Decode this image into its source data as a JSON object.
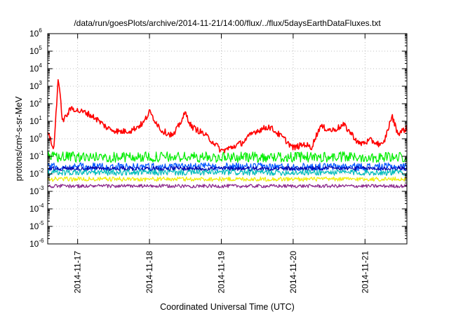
{
  "chart_data": {
    "type": "line",
    "title": "/data/run/goesPlots/archive/2014-11-21/14:00/flux/../flux/5daysEarthDataFluxes.txt",
    "xlabel": "Coordinated Universal Time (UTC)",
    "ylabel": "protons/cm²-s-sr-MeV",
    "y_scale": "log",
    "ylim": [
      1e-06,
      1000000.0
    ],
    "xlim": [
      "2014-11-16 14:00",
      "2014-11-21 14:00"
    ],
    "x_ticks": [
      "2014-11-17",
      "2014-11-18",
      "2014-11-19",
      "2014-11-20",
      "2014-11-21"
    ],
    "y_ticks": [
      {
        "base": "10",
        "exp": "-6"
      },
      {
        "base": "10",
        "exp": "-5"
      },
      {
        "base": "10",
        "exp": "-4"
      },
      {
        "base": "10",
        "exp": "-3"
      },
      {
        "base": "10",
        "exp": "-2"
      },
      {
        "base": "10",
        "exp": "-1"
      },
      {
        "base": "10",
        "exp": "0"
      },
      {
        "base": "10",
        "exp": "1"
      },
      {
        "base": "10",
        "exp": "2"
      },
      {
        "base": "10",
        "exp": "3"
      },
      {
        "base": "10",
        "exp": "4"
      },
      {
        "base": "10",
        "exp": "5"
      },
      {
        "base": "10",
        "exp": "6"
      }
    ],
    "grid": true,
    "series": [
      {
        "color": "#ff0000",
        "x": [
          "2014-11-16 14:00",
          "2014-11-16 16:00",
          "2014-11-16 17:30",
          "2014-11-16 19:00",
          "2014-11-16 22:00",
          "2014-11-17 00:00",
          "2014-11-17 03:00",
          "2014-11-17 06:00",
          "2014-11-17 10:00",
          "2014-11-17 14:00",
          "2014-11-17 18:00",
          "2014-11-17 22:00",
          "2014-11-18 00:00",
          "2014-11-18 04:00",
          "2014-11-18 08:00",
          "2014-11-18 12:00",
          "2014-11-18 14:00",
          "2014-11-18 18:00",
          "2014-11-18 22:00",
          "2014-11-19 00:00",
          "2014-11-19 03:00",
          "2014-11-19 07:00",
          "2014-11-19 11:00",
          "2014-11-19 16:00",
          "2014-11-19 21:00",
          "2014-11-20 00:00",
          "2014-11-20 04:00",
          "2014-11-20 06:00",
          "2014-11-20 09:00",
          "2014-11-20 13:00",
          "2014-11-20 17:00",
          "2014-11-20 20:00",
          "2014-11-20 22:00",
          "2014-11-21 02:00",
          "2014-11-21 06:00",
          "2014-11-21 09:00",
          "2014-11-21 11:00",
          "2014-11-21 14:00"
        ],
        "y": [
          3,
          0.2,
          3000,
          10,
          60,
          40,
          30,
          15,
          4,
          2.5,
          3,
          8,
          35,
          3,
          1.5,
          30,
          5,
          2,
          0.5,
          0.2,
          0.3,
          0.6,
          2.5,
          5,
          1,
          0.3,
          0.5,
          0.3,
          5,
          3,
          6,
          1.5,
          0.5,
          0.8,
          0.4,
          20,
          2,
          4
        ],
        "noise": 0.35
      },
      {
        "color": "#00ee00",
        "constant": 0.09,
        "noise": 0.6
      },
      {
        "color": "#0055ff",
        "constant": 0.025,
        "noise": 0.45
      },
      {
        "color": "#0000aa",
        "constant": 0.02,
        "noise": 0.25
      },
      {
        "color": "#00bbbb",
        "constant": 0.012,
        "noise": 0.35
      },
      {
        "color": "#eeee00",
        "constant": 0.005,
        "noise": 0.25
      },
      {
        "color": "#882288",
        "constant": 0.002,
        "noise": 0.2
      }
    ]
  }
}
